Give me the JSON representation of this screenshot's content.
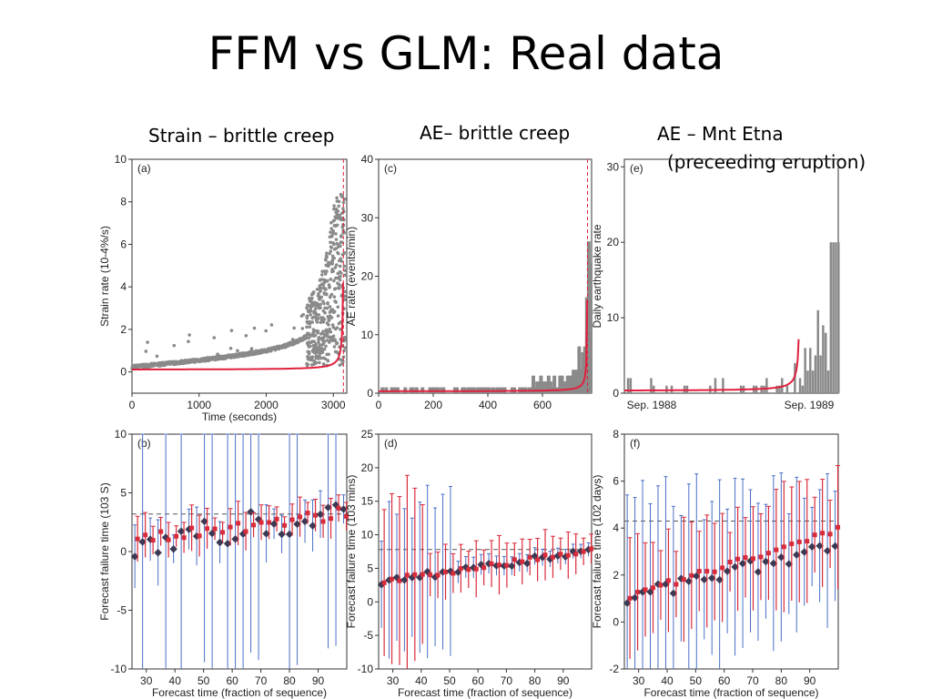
{
  "slide": {
    "title": "FFM vs GLM: Real data",
    "columns": [
      {
        "label": "Strain – brittle creep"
      },
      {
        "label": "AE– brittle creep"
      },
      {
        "label": "AE –  Mnt Etna",
        "sublabel": "(preceeding eruption)"
      }
    ]
  },
  "colors": {
    "model_line": "#e0203c",
    "data_gray": "#8a8a8a",
    "ffm_red": "#d92b3a",
    "glm_blue": "#4a6fc7",
    "marker_dark": "#3a3a55"
  },
  "chart_data": [
    {
      "panel": "(a)",
      "type": "scatter",
      "xlabel": "Time (seconds)",
      "ylabel": "Strain rate (10-4%/s)",
      "xlim": [
        0,
        3200
      ],
      "ylim": [
        -1,
        10
      ],
      "xticks": [
        0,
        1000,
        2000,
        3000
      ],
      "yticks": [
        0,
        2,
        4,
        6,
        8,
        10
      ],
      "failure_time": 3150,
      "series": [
        {
          "type": "scatter",
          "description": "strain rate observations"
        },
        {
          "type": "line",
          "description": "fitted model",
          "color": "#e0203c"
        }
      ]
    },
    {
      "panel": "(c)",
      "type": "bar",
      "xlabel": "",
      "ylabel": "AE rate (events/min)",
      "xlim": [
        0,
        780
      ],
      "ylim": [
        0,
        40
      ],
      "xticks": [
        0,
        200,
        400,
        600
      ],
      "yticks": [
        0,
        10,
        20,
        30,
        40
      ],
      "failure_time": 765
    },
    {
      "panel": "(e)",
      "type": "bar",
      "xlabel": "",
      "ylabel": "Daily earthquake rate",
      "xlim": [
        0,
        1
      ],
      "ylim": [
        0,
        31
      ],
      "xtick_labels": [
        "Sep. 1988",
        "Sep. 1989"
      ],
      "yticks": [
        0,
        10,
        20,
        30
      ],
      "failure_time": 0.82
    },
    {
      "panel": "(b)",
      "type": "scatter",
      "xlabel": "Forecast time (fraction of sequence)",
      "ylabel": "Forecast failure time (103 S)",
      "xlim": [
        25,
        100
      ],
      "ylim": [
        -10,
        10
      ],
      "xticks": [
        30,
        40,
        50,
        60,
        70,
        80,
        90
      ],
      "yticks": [
        -10,
        -5,
        0,
        5,
        10
      ],
      "reference_line": 3.2
    },
    {
      "panel": "(d)",
      "type": "scatter",
      "xlabel": "Forecast time (fraction of sequence)",
      "ylabel": "Forecast failure time (103 mins)",
      "xlim": [
        25,
        100
      ],
      "ylim": [
        -10,
        25
      ],
      "xticks": [
        30,
        40,
        50,
        60,
        70,
        80,
        90
      ],
      "yticks": [
        -10,
        -5,
        0,
        5,
        10,
        15,
        20,
        25
      ],
      "reference_line": 7.8
    },
    {
      "panel": "(f)",
      "type": "scatter",
      "xlabel": "Forecast time (fraction of sequence)",
      "ylabel": "Forecast failure time (102 days)",
      "xlim": [
        25,
        100
      ],
      "ylim": [
        -2,
        8
      ],
      "xticks": [
        30,
        40,
        50,
        60,
        70,
        80,
        90
      ],
      "yticks": [
        -2,
        0,
        2,
        4,
        6,
        8
      ],
      "reference_line": 4.3
    }
  ]
}
